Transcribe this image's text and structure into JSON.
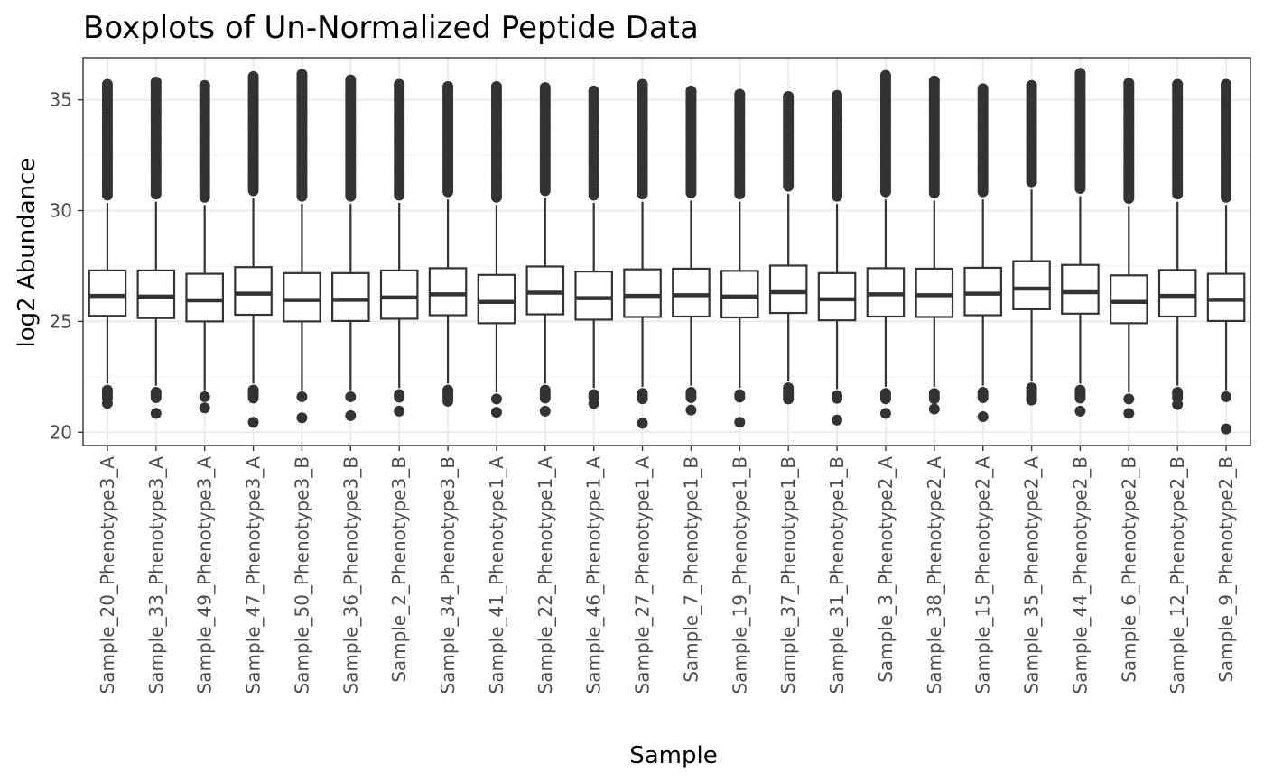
{
  "chart_data": {
    "type": "boxplot",
    "title": "Boxplots of Un-Normalized Peptide Data",
    "xlabel": "Sample",
    "ylabel": "log2 Abundance",
    "ylim": [
      19.4,
      36.9
    ],
    "yticks": [
      20,
      25,
      30,
      35
    ],
    "grid": true,
    "categories": [
      "Sample_20_Phenotype3_A",
      "Sample_33_Phenotype3_A",
      "Sample_49_Phenotype3_A",
      "Sample_47_Phenotype3_A",
      "Sample_50_Phenotype3_B",
      "Sample_36_Phenotype3_B",
      "Sample_2_Phenotype3_B",
      "Sample_34_Phenotype3_B",
      "Sample_41_Phenotype1_A",
      "Sample_22_Phenotype1_A",
      "Sample_46_Phenotype1_A",
      "Sample_27_Phenotype1_A",
      "Sample_7_Phenotype1_B",
      "Sample_19_Phenotype1_B",
      "Sample_37_Phenotype1_B",
      "Sample_31_Phenotype1_B",
      "Sample_3_Phenotype2_A",
      "Sample_38_Phenotype2_A",
      "Sample_15_Phenotype2_A",
      "Sample_35_Phenotype2_A",
      "Sample_44_Phenotype2_B",
      "Sample_6_Phenotype2_B",
      "Sample_12_Phenotype2_B",
      "Sample_9_Phenotype2_B"
    ],
    "boxes": [
      {
        "q1": 25.25,
        "median": 26.15,
        "q3": 27.3,
        "whisker_low": 22.2,
        "whisker_high": 30.35,
        "outlier_low_min": 21.3,
        "outlier_high_max": 35.7
      },
      {
        "q1": 25.15,
        "median": 26.12,
        "q3": 27.3,
        "whisker_low": 22.1,
        "whisker_high": 30.4,
        "outlier_low_min": 20.85,
        "outlier_high_max": 35.8
      },
      {
        "q1": 25.0,
        "median": 25.95,
        "q3": 27.15,
        "whisker_low": 21.9,
        "whisker_high": 30.25,
        "outlier_low_min": 21.1,
        "outlier_high_max": 35.65
      },
      {
        "q1": 25.3,
        "median": 26.25,
        "q3": 27.45,
        "whisker_low": 22.2,
        "whisker_high": 30.55,
        "outlier_low_min": 20.45,
        "outlier_high_max": 36.05
      },
      {
        "q1": 25.0,
        "median": 25.97,
        "q3": 27.18,
        "whisker_low": 21.9,
        "whisker_high": 30.3,
        "outlier_low_min": 20.65,
        "outlier_high_max": 36.15
      },
      {
        "q1": 25.02,
        "median": 25.98,
        "q3": 27.18,
        "whisker_low": 21.9,
        "whisker_high": 30.3,
        "outlier_low_min": 20.75,
        "outlier_high_max": 35.9
      },
      {
        "q1": 25.12,
        "median": 26.08,
        "q3": 27.3,
        "whisker_low": 22.0,
        "whisker_high": 30.35,
        "outlier_low_min": 20.95,
        "outlier_high_max": 35.7
      },
      {
        "q1": 25.28,
        "median": 26.22,
        "q3": 27.4,
        "whisker_low": 22.2,
        "whisker_high": 30.5,
        "outlier_low_min": 21.4,
        "outlier_high_max": 35.6
      },
      {
        "q1": 24.92,
        "median": 25.88,
        "q3": 27.1,
        "whisker_low": 21.8,
        "whisker_high": 30.25,
        "outlier_low_min": 20.9,
        "outlier_high_max": 35.6
      },
      {
        "q1": 25.32,
        "median": 26.3,
        "q3": 27.48,
        "whisker_low": 22.2,
        "whisker_high": 30.55,
        "outlier_low_min": 20.95,
        "outlier_high_max": 35.55
      },
      {
        "q1": 25.08,
        "median": 26.05,
        "q3": 27.25,
        "whisker_low": 22.0,
        "whisker_high": 30.35,
        "outlier_low_min": 21.3,
        "outlier_high_max": 35.4
      },
      {
        "q1": 25.2,
        "median": 26.15,
        "q3": 27.35,
        "whisker_low": 22.05,
        "whisker_high": 30.4,
        "outlier_low_min": 20.4,
        "outlier_high_max": 35.7
      },
      {
        "q1": 25.22,
        "median": 26.18,
        "q3": 27.38,
        "whisker_low": 22.1,
        "whisker_high": 30.45,
        "outlier_low_min": 21.0,
        "outlier_high_max": 35.4
      },
      {
        "q1": 25.18,
        "median": 26.12,
        "q3": 27.28,
        "whisker_low": 22.0,
        "whisker_high": 30.4,
        "outlier_low_min": 20.45,
        "outlier_high_max": 35.25
      },
      {
        "q1": 25.38,
        "median": 26.32,
        "q3": 27.52,
        "whisker_low": 22.3,
        "whisker_high": 30.75,
        "outlier_low_min": 21.5,
        "outlier_high_max": 35.15
      },
      {
        "q1": 25.05,
        "median": 26.0,
        "q3": 27.18,
        "whisker_low": 21.95,
        "whisker_high": 30.3,
        "outlier_low_min": 20.55,
        "outlier_high_max": 35.2
      },
      {
        "q1": 25.22,
        "median": 26.22,
        "q3": 27.4,
        "whisker_low": 22.05,
        "whisker_high": 30.5,
        "outlier_low_min": 20.85,
        "outlier_high_max": 36.1
      },
      {
        "q1": 25.2,
        "median": 26.18,
        "q3": 27.38,
        "whisker_low": 22.05,
        "whisker_high": 30.45,
        "outlier_low_min": 21.05,
        "outlier_high_max": 35.85
      },
      {
        "q1": 25.28,
        "median": 26.25,
        "q3": 27.42,
        "whisker_low": 22.1,
        "whisker_high": 30.5,
        "outlier_low_min": 20.7,
        "outlier_high_max": 35.5
      },
      {
        "q1": 25.55,
        "median": 26.48,
        "q3": 27.72,
        "whisker_low": 22.3,
        "whisker_high": 30.95,
        "outlier_low_min": 21.45,
        "outlier_high_max": 35.65
      },
      {
        "q1": 25.35,
        "median": 26.32,
        "q3": 27.55,
        "whisker_low": 22.2,
        "whisker_high": 30.65,
        "outlier_low_min": 20.95,
        "outlier_high_max": 36.2
      },
      {
        "q1": 24.92,
        "median": 25.88,
        "q3": 27.08,
        "whisker_low": 21.8,
        "whisker_high": 30.2,
        "outlier_low_min": 20.85,
        "outlier_high_max": 35.75
      },
      {
        "q1": 25.22,
        "median": 26.15,
        "q3": 27.32,
        "whisker_low": 22.1,
        "whisker_high": 30.4,
        "outlier_low_min": 21.25,
        "outlier_high_max": 35.7
      },
      {
        "q1": 25.02,
        "median": 25.98,
        "q3": 27.15,
        "whisker_low": 21.9,
        "whisker_high": 30.25,
        "outlier_low_min": 20.15,
        "outlier_high_max": 35.7
      }
    ],
    "colors": {
      "box_stroke": "#333333",
      "box_fill": "#ffffff",
      "outlier": "#333333",
      "grid_major": "#ebebeb",
      "grid_minor": "#f4f4f4",
      "panel_border": "#333333",
      "tick_label": "#4d4d4d"
    }
  }
}
